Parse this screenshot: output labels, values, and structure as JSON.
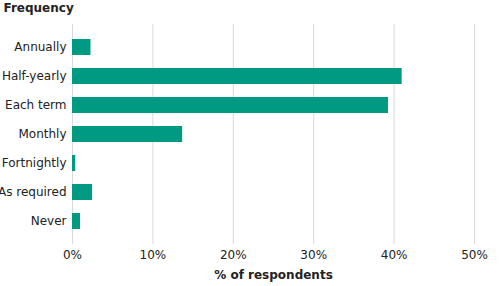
{
  "chart_data": {
    "type": "bar",
    "orientation": "horizontal",
    "ylabel": "Frequency",
    "xlabel": "% of respondents",
    "categories": [
      "Annually",
      "Half-yearly",
      "Each term",
      "Monthly",
      "Fortnightly",
      "As required",
      "Never"
    ],
    "values": [
      2.3,
      41.0,
      39.3,
      13.7,
      0.4,
      2.5,
      1.0
    ],
    "color": "#009a82",
    "xlim": [
      0,
      50
    ],
    "xticks": [
      {
        "value": 0,
        "label": "0%"
      },
      {
        "value": 10,
        "label": "10%"
      },
      {
        "value": 20,
        "label": "20%"
      },
      {
        "value": 30,
        "label": "30%"
      },
      {
        "value": 40,
        "label": "40%"
      },
      {
        "value": 50,
        "label": "50%"
      }
    ],
    "grid": true
  }
}
